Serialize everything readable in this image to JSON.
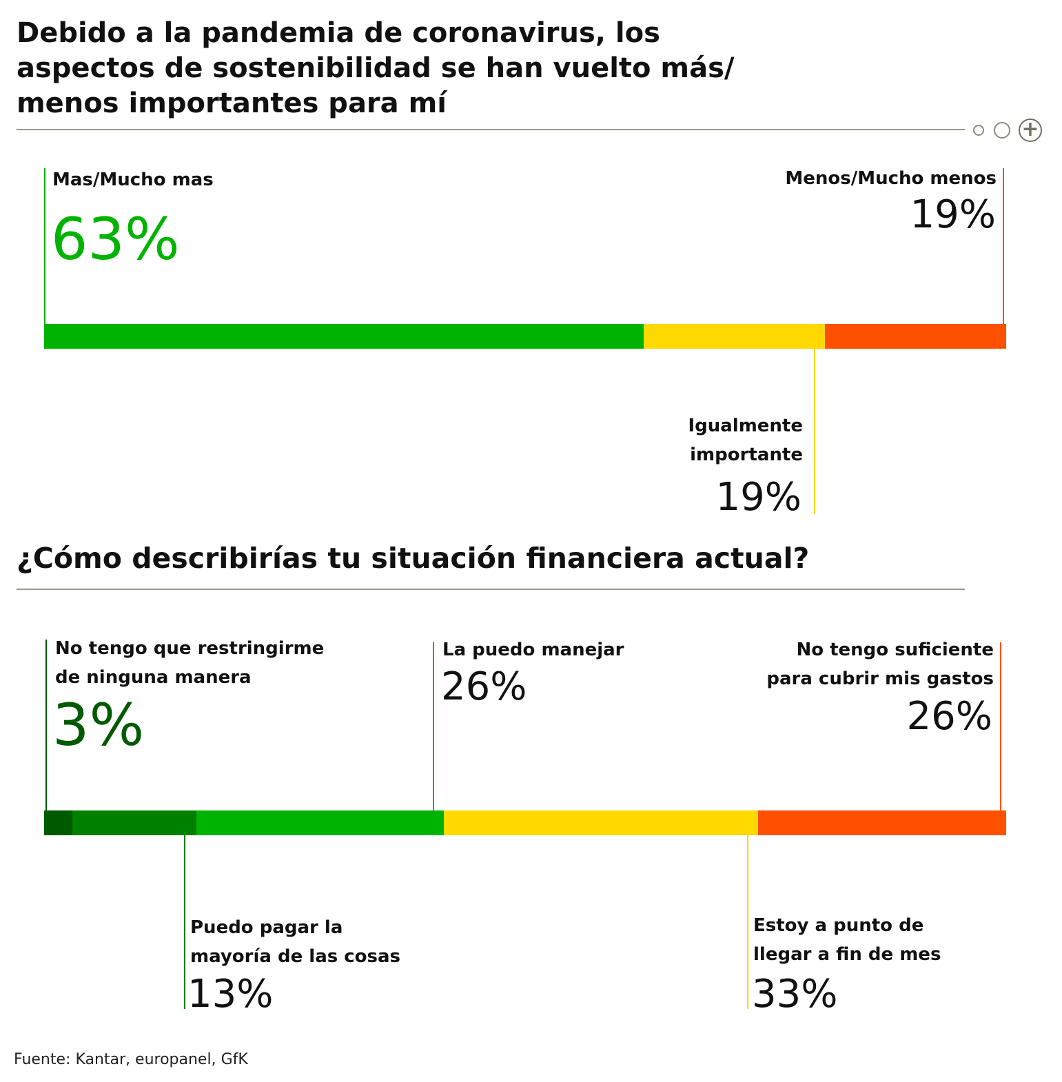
{
  "chart_data": [
    {
      "type": "bar",
      "stacked": true,
      "orientation": "horizontal",
      "title": [
        "Debido a la pandemia de coronavirus, los",
        "aspectos de sostenibilidad se han vuelto más/",
        "menos importantes para mí"
      ],
      "unit": "%",
      "series": [
        {
          "name": "Mas/Mucho mas",
          "value": 63,
          "label": "63%",
          "color": "#00b300"
        },
        {
          "name": "Igualmente importante",
          "name_lines": [
            "Igualmente",
            "importante"
          ],
          "value": 19,
          "label": "19%",
          "color": "#ffd900"
        },
        {
          "name": "Menos/Mucho menos",
          "value": 19,
          "label": "19%",
          "color": "#ff5000"
        }
      ]
    },
    {
      "type": "bar",
      "stacked": true,
      "orientation": "horizontal",
      "title": "¿Cómo describirías tu situación financiera actual?",
      "unit": "%",
      "series": [
        {
          "name": "No tengo que restringirme de ninguna manera",
          "name_lines": [
            "No tengo que restringirme",
            "de ninguna manera"
          ],
          "value": 3,
          "label": "3%",
          "color": "#005a00"
        },
        {
          "name": "Puedo pagar la mayoría de las cosas",
          "name_lines": [
            "Puedo pagar la",
            "mayoría de las cosas"
          ],
          "value": 13,
          "label": "13%",
          "color": "#008000"
        },
        {
          "name": "La puedo manejar",
          "value": 26,
          "label": "26%",
          "color": "#00b300"
        },
        {
          "name": "Estoy a punto de llegar a fin de mes",
          "name_lines": [
            "Estoy a punto de",
            "llegar a fin de mes"
          ],
          "value": 33,
          "label": "33%",
          "color": "#ffd900"
        },
        {
          "name": "No tengo suficiente para cubrir mis gastos",
          "name_lines": [
            "No tengo suficiente",
            "para cubrir mis gastos"
          ],
          "value": 26,
          "label": "26%",
          "color": "#ff5000"
        }
      ]
    }
  ],
  "source": "Fuente: Kantar, europanel, GfK",
  "controls": {
    "icons": [
      "small-circle-icon",
      "circle-icon",
      "plus-circle-icon"
    ],
    "plus_symbol": "+"
  }
}
